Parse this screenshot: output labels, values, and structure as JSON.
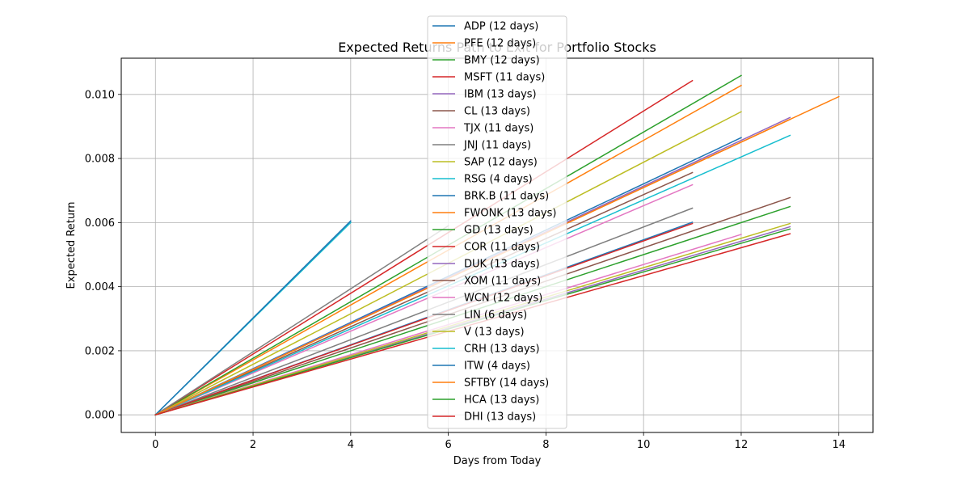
{
  "chart_data": {
    "type": "line",
    "title": "Expected Returns Path to Exit for Portfolio Stocks",
    "xlabel": "Days from Today",
    "ylabel": "Expected Return",
    "xlim": [
      -0.7,
      14.7
    ],
    "ylim": [
      -0.00055,
      0.01113
    ],
    "xticks": [
      0,
      2,
      4,
      6,
      8,
      10,
      12,
      14
    ],
    "xtick_labels": [
      "0",
      "2",
      "4",
      "6",
      "8",
      "10",
      "12",
      "14"
    ],
    "yticks": [
      0,
      0.002,
      0.004,
      0.006,
      0.008,
      0.01
    ],
    "ytick_labels": [
      "0.000",
      "0.002",
      "0.004",
      "0.006",
      "0.008",
      "0.010"
    ],
    "grid": true,
    "legend_position": "upper-center",
    "series": [
      {
        "name": "ADP (12 days)",
        "color": "#1f77b4",
        "x": [
          0,
          12
        ],
        "y": [
          0,
          0.00865
        ]
      },
      {
        "name": "PFE (12 days)",
        "color": "#ff7f0e",
        "x": [
          0,
          12
        ],
        "y": [
          0,
          0.01028
        ]
      },
      {
        "name": "BMY (12 days)",
        "color": "#2ca02c",
        "x": [
          0,
          12
        ],
        "y": [
          0,
          0.01059
        ]
      },
      {
        "name": "MSFT (11 days)",
        "color": "#d62728",
        "x": [
          0,
          11
        ],
        "y": [
          0,
          0.01043
        ]
      },
      {
        "name": "IBM (13 days)",
        "color": "#9467bd",
        "x": [
          0,
          13
        ],
        "y": [
          0,
          0.00587
        ]
      },
      {
        "name": "CL (13 days)",
        "color": "#8c564b",
        "x": [
          0,
          13
        ],
        "y": [
          0,
          0.00678
        ]
      },
      {
        "name": "TJX (11 days)",
        "color": "#e377c2",
        "x": [
          0,
          11
        ],
        "y": [
          0,
          0.00718
        ]
      },
      {
        "name": "JNJ (11 days)",
        "color": "#7f7f7f",
        "x": [
          0,
          11
        ],
        "y": [
          0,
          0.00645
        ]
      },
      {
        "name": "SAP (12 days)",
        "color": "#bcbd22",
        "x": [
          0,
          12
        ],
        "y": [
          0,
          0.00946
        ]
      },
      {
        "name": "RSG (4 days)",
        "color": "#17becf",
        "x": [
          0,
          4
        ],
        "y": [
          0,
          0.006
        ]
      },
      {
        "name": "BRK.B (11 days)",
        "color": "#1f77b4",
        "x": [
          0,
          11
        ],
        "y": [
          0,
          0.00601
        ]
      },
      {
        "name": "FWONK (13 days)",
        "color": "#ff7f0e",
        "x": [
          0,
          13
        ],
        "y": [
          0,
          0.00922
        ]
      },
      {
        "name": "GD (13 days)",
        "color": "#2ca02c",
        "x": [
          0,
          13
        ],
        "y": [
          0,
          0.0065
        ]
      },
      {
        "name": "COR (11 days)",
        "color": "#d62728",
        "x": [
          0,
          11
        ],
        "y": [
          0,
          0.00597
        ]
      },
      {
        "name": "DUK (13 days)",
        "color": "#9467bd",
        "x": [
          0,
          13
        ],
        "y": [
          0,
          0.00928
        ]
      },
      {
        "name": "XOM (11 days)",
        "color": "#8c564b",
        "x": [
          0,
          11
        ],
        "y": [
          0,
          0.00756
        ]
      },
      {
        "name": "WCN (12 days)",
        "color": "#e377c2",
        "x": [
          0,
          12
        ],
        "y": [
          0,
          0.00563
        ]
      },
      {
        "name": "LIN (6 days)",
        "color": "#7f7f7f",
        "x": [
          0,
          6
        ],
        "y": [
          0,
          0.0059
        ]
      },
      {
        "name": "V (13 days)",
        "color": "#bcbd22",
        "x": [
          0,
          13
        ],
        "y": [
          0,
          0.00597
        ]
      },
      {
        "name": "CRH (13 days)",
        "color": "#17becf",
        "x": [
          0,
          13
        ],
        "y": [
          0,
          0.00872
        ]
      },
      {
        "name": "ITW (4 days)",
        "color": "#1f77b4",
        "x": [
          0,
          4
        ],
        "y": [
          0,
          0.00605
        ]
      },
      {
        "name": "SFTBY (14 days)",
        "color": "#ff7f0e",
        "x": [
          0,
          14
        ],
        "y": [
          0,
          0.00993
        ]
      },
      {
        "name": "HCA (13 days)",
        "color": "#2ca02c",
        "x": [
          0,
          13
        ],
        "y": [
          0,
          0.0058
        ]
      },
      {
        "name": "DHI (13 days)",
        "color": "#d62728",
        "x": [
          0,
          13
        ],
        "y": [
          0,
          0.00565
        ]
      }
    ]
  }
}
